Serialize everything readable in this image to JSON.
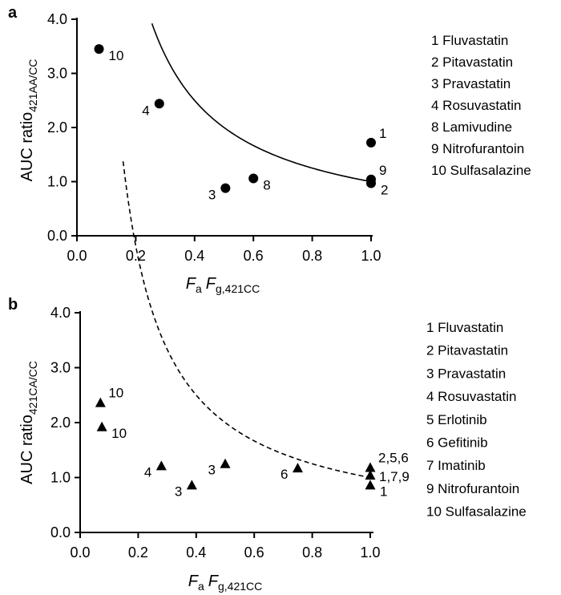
{
  "chart_data": [
    {
      "panel": "a",
      "type": "scatter",
      "xlabel": {
        "italic_a": "F",
        "sub_a": "a",
        "italic_b": "F",
        "sub_b": "g,421CC"
      },
      "ylabel": {
        "main": "AUC ratio",
        "sub": "421AA/CC"
      },
      "xlim": [
        0.0,
        1.0
      ],
      "ylim": [
        0.0,
        4.0
      ],
      "xticks": [
        "0.0",
        "0.2",
        "0.4",
        "0.6",
        "0.8",
        "1.0"
      ],
      "yticks": [
        "0.0",
        "1.0",
        "2.0",
        "3.0",
        "4.0"
      ],
      "marker": "circle",
      "grid": false,
      "points": [
        {
          "x": 0.075,
          "y": 3.45,
          "label": "10",
          "pos": "below-right"
        },
        {
          "x": 0.28,
          "y": 2.44,
          "label": "4",
          "pos": "below-left"
        },
        {
          "x": 0.505,
          "y": 0.88,
          "label": "3",
          "pos": "below-left"
        },
        {
          "x": 0.6,
          "y": 1.06,
          "label": "8",
          "pos": "below-right"
        },
        {
          "x": 1.0,
          "y": 1.72,
          "label": "1",
          "pos": "upper-right"
        },
        {
          "x": 1.0,
          "y": 1.04,
          "label": "9",
          "pos": "upper-right"
        },
        {
          "x": 1.0,
          "y": 0.97,
          "label": "2",
          "pos": "below-right"
        }
      ],
      "curve": {
        "style": "solid",
        "formula": "1/x",
        "x_range": [
          0.255,
          1.0
        ]
      },
      "legend": [
        "1 Fluvastatin",
        "2 Pitavastatin",
        "3 Pravastatin",
        "4 Rosuvastatin",
        "8 Lamivudine",
        "9 Nitrofurantoin",
        "10 Sulfasalazine"
      ],
      "legend_position": "right"
    },
    {
      "panel": "b",
      "type": "scatter",
      "xlabel": {
        "italic_a": "F",
        "sub_a": "a",
        "italic_b": "F",
        "sub_b": "g,421CC"
      },
      "ylabel": {
        "main": "AUC ratio",
        "sub": "421CA/CC"
      },
      "xlim": [
        0.0,
        1.0
      ],
      "ylim": [
        0.0,
        4.0
      ],
      "xticks": [
        "0.0",
        "0.2",
        "0.4",
        "0.6",
        "0.8",
        "1.0"
      ],
      "yticks": [
        "0.0",
        "1.0",
        "2.0",
        "3.0",
        "4.0"
      ],
      "marker": "triangle",
      "grid": false,
      "points": [
        {
          "x": 0.07,
          "y": 2.37,
          "label": "10",
          "pos": "upper-right"
        },
        {
          "x": 0.075,
          "y": 1.93,
          "label": "10",
          "pos": "below-right"
        },
        {
          "x": 0.28,
          "y": 1.22,
          "label": "4",
          "pos": "below-left"
        },
        {
          "x": 0.385,
          "y": 0.87,
          "label": "3",
          "pos": "below-left"
        },
        {
          "x": 0.5,
          "y": 1.26,
          "label": "3",
          "pos": "below-left"
        },
        {
          "x": 0.75,
          "y": 1.18,
          "label": "6",
          "pos": "below-left"
        },
        {
          "x": 1.0,
          "y": 1.19,
          "label": "2,5,6",
          "pos": "upper-right"
        },
        {
          "x": 1.0,
          "y": 1.05,
          "label": "1,7,9",
          "pos": "right"
        },
        {
          "x": 1.0,
          "y": 0.87,
          "label": "1",
          "pos": "below-right"
        }
      ],
      "curve": {
        "style": "dashed",
        "formula": "1/x",
        "x_range": [
          0.148,
          1.0
        ]
      },
      "legend": [
        "1 Fluvastatin",
        "2 Pitavastatin",
        "3 Pravastatin",
        "4 Rosuvastatin",
        "5 Erlotinib",
        "6 Gefitinib",
        "7 Imatinib",
        "9 Nitrofurantoin",
        "10 Sulfasalazine"
      ],
      "legend_position": "right"
    }
  ]
}
